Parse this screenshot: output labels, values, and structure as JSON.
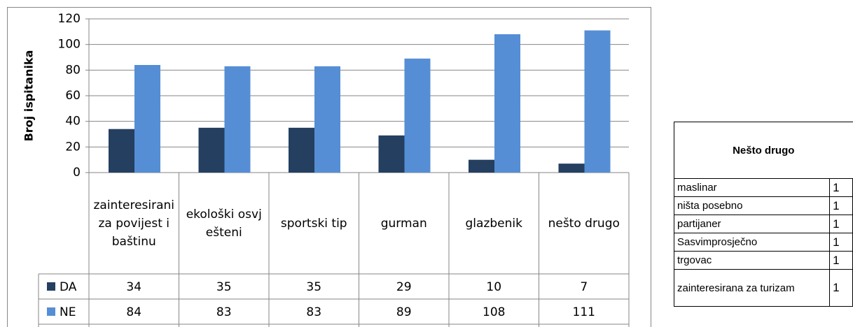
{
  "chart_data": {
    "type": "bar",
    "y_label": "Broj ispitanika",
    "categories": [
      "zainteresirani za povijest i baštinu",
      "ekološki osvješteni",
      "sportski tip",
      "gurman",
      "glazbenik",
      "nešto drugo"
    ],
    "series": [
      {
        "name": "DA",
        "color": "#243f60",
        "values": [
          34,
          35,
          35,
          29,
          10,
          7
        ]
      },
      {
        "name": "NE",
        "color": "#558ed5",
        "values": [
          84,
          83,
          83,
          89,
          108,
          111
        ]
      }
    ],
    "ylim": [
      0,
      120
    ],
    "yticks": [
      0,
      20,
      40,
      60,
      80,
      100,
      120
    ],
    "grid": true
  },
  "side_table": {
    "header": "Nešto drugo",
    "rows": [
      [
        "maslinar",
        "1"
      ],
      [
        "ništa posebno",
        "1"
      ],
      [
        "partijaner",
        "1"
      ],
      [
        "Sasvimprosječno",
        "1"
      ],
      [
        "trgovac",
        "1"
      ],
      [
        "zainteresirana za turizam",
        "1"
      ]
    ]
  }
}
